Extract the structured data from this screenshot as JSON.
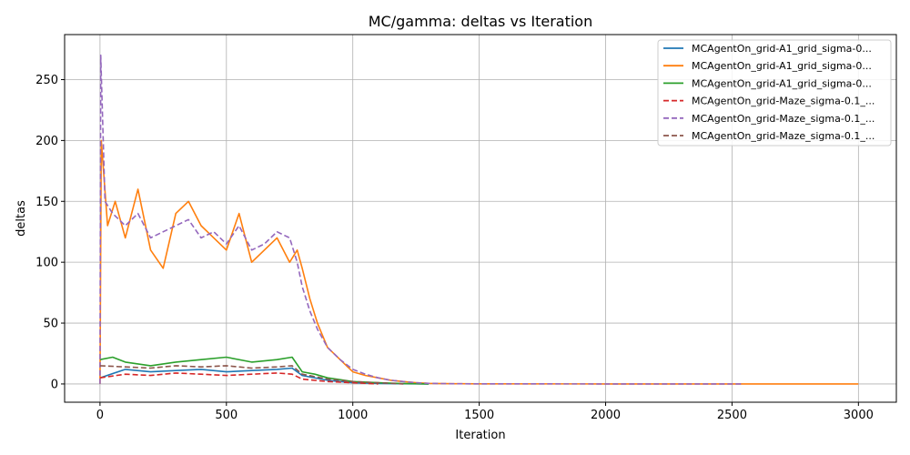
{
  "chart_data": {
    "type": "line",
    "title": "MC/gamma: deltas vs Iteration",
    "xlabel": "Iteration",
    "ylabel": "deltas",
    "xlim": [
      -140,
      3150
    ],
    "ylim": [
      -15,
      287
    ],
    "xticks": [
      0,
      500,
      1000,
      1500,
      2000,
      2500,
      3000
    ],
    "yticks": [
      0,
      50,
      100,
      150,
      200,
      250
    ],
    "grid": true,
    "legend_position": "top-right",
    "series": [
      {
        "name": "MCAgentOn_grid-A1_grid_sigma-0...",
        "color": "#1f77b4",
        "dash": "solid",
        "x": [
          0,
          100,
          200,
          300,
          400,
          500,
          600,
          700,
          760,
          800,
          900,
          1000,
          1100,
          1200,
          1300
        ],
        "y": [
          5,
          12,
          10,
          11,
          12,
          10,
          11,
          12,
          13,
          7,
          3,
          1,
          0.5,
          0.2,
          0
        ]
      },
      {
        "name": "MCAgentOn_grid-A1_grid_sigma-0...",
        "color": "#ff7f0e",
        "dash": "solid",
        "x": [
          0,
          5,
          30,
          60,
          100,
          150,
          200,
          250,
          300,
          350,
          400,
          450,
          500,
          550,
          600,
          650,
          700,
          750,
          780,
          800,
          830,
          860,
          900,
          950,
          1000,
          1050,
          1100,
          1150,
          1200,
          1250,
          1300,
          1400,
          1500,
          2000,
          2500,
          3000
        ],
        "y": [
          0,
          200,
          130,
          150,
          120,
          160,
          110,
          95,
          140,
          150,
          130,
          120,
          110,
          140,
          100,
          110,
          120,
          100,
          110,
          95,
          70,
          50,
          30,
          20,
          10,
          7,
          5,
          3,
          2,
          1,
          0.5,
          0.2,
          0.1,
          0,
          0,
          0
        ]
      },
      {
        "name": "MCAgentOn_grid-A1_grid_sigma-0...",
        "color": "#2ca02c",
        "dash": "solid",
        "x": [
          0,
          50,
          100,
          200,
          300,
          400,
          500,
          600,
          700,
          760,
          800,
          850,
          900,
          1000,
          1100,
          1200,
          1300
        ],
        "y": [
          20,
          22,
          18,
          15,
          18,
          20,
          22,
          18,
          20,
          22,
          10,
          8,
          5,
          2,
          1,
          0.3,
          0
        ]
      },
      {
        "name": "MCAgentOn_grid-Maze_sigma-0.1_...",
        "color": "#d62728",
        "dash": "dashed",
        "x": [
          0,
          100,
          200,
          300,
          400,
          500,
          600,
          700,
          760,
          800,
          900,
          1000,
          1100
        ],
        "y": [
          5,
          8,
          7,
          9,
          8,
          7,
          8,
          9,
          8,
          4,
          2,
          1,
          0
        ]
      },
      {
        "name": "MCAgentOn_grid-Maze_sigma-0.1_...",
        "color": "#9467bd",
        "dash": "dashed",
        "x": [
          0,
          3,
          20,
          50,
          100,
          150,
          200,
          250,
          300,
          350,
          400,
          450,
          500,
          550,
          600,
          650,
          700,
          750,
          780,
          800,
          830,
          860,
          900,
          950,
          1000,
          1050,
          1100,
          1150,
          1200,
          1250,
          1300,
          1400,
          1500,
          2000,
          2540
        ],
        "y": [
          0,
          270,
          150,
          140,
          130,
          140,
          120,
          125,
          130,
          135,
          120,
          125,
          115,
          130,
          110,
          115,
          125,
          120,
          100,
          80,
          60,
          45,
          30,
          20,
          12,
          8,
          5,
          3,
          2,
          1,
          0.5,
          0.2,
          0.1,
          0,
          0
        ]
      },
      {
        "name": "MCAgentOn_grid-Maze_sigma-0.1_...",
        "color": "#8c564b",
        "dash": "dashed",
        "x": [
          0,
          100,
          200,
          300,
          400,
          500,
          600,
          700,
          760,
          800,
          900,
          1000,
          1100,
          1200
        ],
        "y": [
          15,
          14,
          13,
          15,
          14,
          15,
          13,
          14,
          15,
          8,
          4,
          2,
          1,
          0
        ]
      }
    ]
  }
}
